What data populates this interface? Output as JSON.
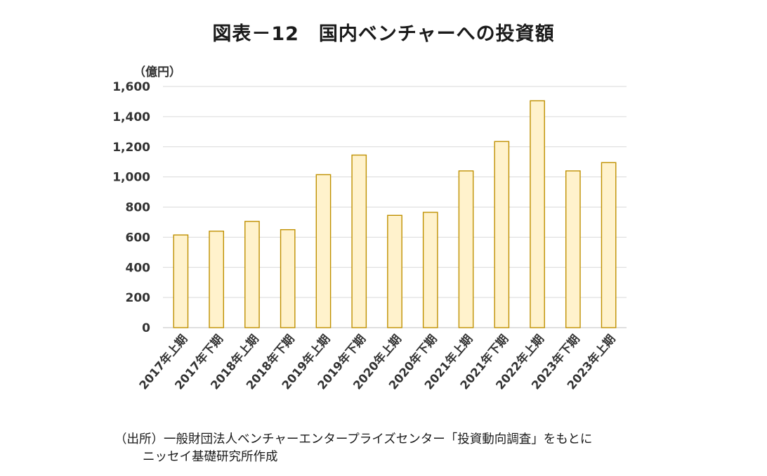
{
  "chart_data": {
    "type": "bar",
    "title": "図表－12　国内ベンチャーへの投資額",
    "ylabel": "（億円）",
    "xlabel": "",
    "ylim": [
      0,
      1600
    ],
    "yticks": [
      "0",
      "200",
      "400",
      "600",
      "800",
      "1,000",
      "1,200",
      "1,400",
      "1,600"
    ],
    "ytick_values": [
      0,
      200,
      400,
      600,
      800,
      1000,
      1200,
      1400,
      1600
    ],
    "grid": true,
    "legend": "none",
    "categories": [
      "2017年上期",
      "2017年下期",
      "2018年上期",
      "2018年下期",
      "2019年上期",
      "2019年下期",
      "2020年上期",
      "2020年下期",
      "2021年上期",
      "2021年下期",
      "2022年上期",
      "2023年下期",
      "2023年上期"
    ],
    "values": [
      615,
      640,
      705,
      650,
      1015,
      1145,
      745,
      765,
      1040,
      1235,
      1505,
      1040,
      1095
    ],
    "colors": {
      "bar_fill": "#FFF2CC",
      "bar_stroke": "#BF9000",
      "grid": "#D9D9D9",
      "axis": "#BFBFBF"
    }
  },
  "source": {
    "line1": "（出所）一般財団法人ベンチャーエンタープライズセンター「投資動向調査」をもとに",
    "line2": "ニッセイ基礎研究所作成"
  }
}
